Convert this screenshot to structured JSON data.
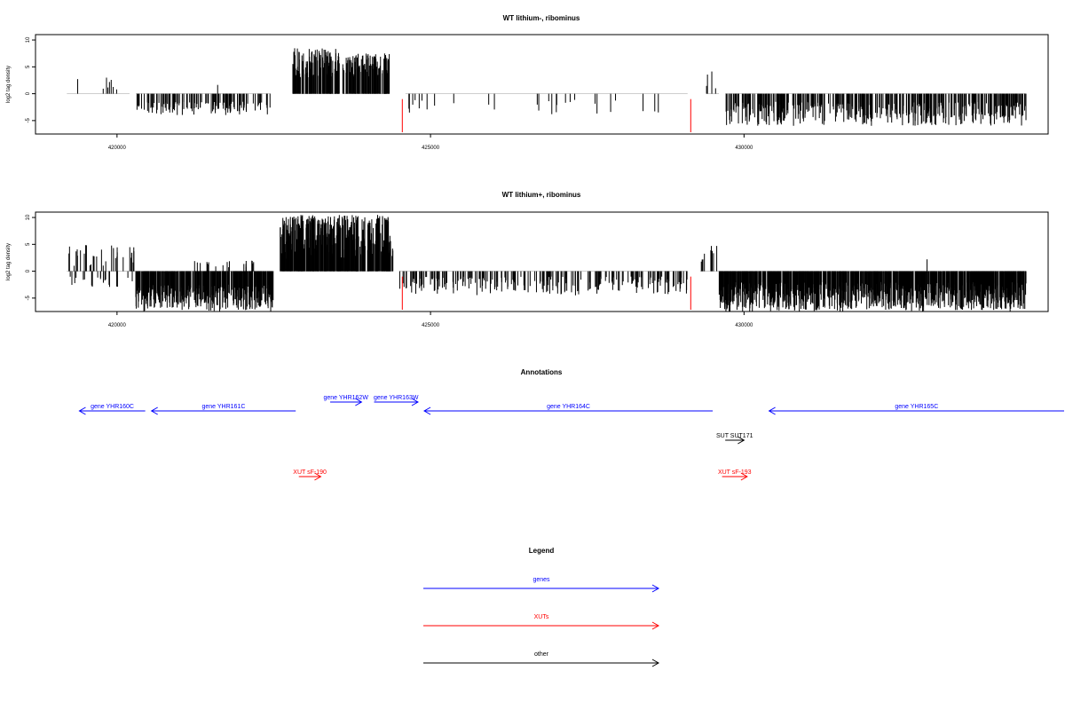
{
  "colors": {
    "gene": "#0000ff",
    "xut": "#ff0000",
    "other": "#000000",
    "bar": "#000000",
    "marker": "#ff0000",
    "baseline": "#bebebe"
  },
  "chart_data": [
    {
      "type": "bar",
      "title": "WT lithium-, ribominus",
      "ylabel": "log2 tag density",
      "xlim": [
        418700,
        434850
      ],
      "ylim": [
        -7.5,
        11
      ],
      "xticks": [
        420000,
        425000,
        430000
      ],
      "yticks": [
        -5,
        0,
        5,
        10
      ],
      "marker_positions": [
        424550,
        429150
      ],
      "segments": [
        {
          "from": 419200,
          "to": 420200,
          "lo": 0,
          "hi": 3,
          "density": 0.008
        },
        {
          "from": 420300,
          "to": 422450,
          "lo": -4,
          "hi": -1.5,
          "density": 0.06
        },
        {
          "from": 421600,
          "to": 421620,
          "lo": 0,
          "hi": 2,
          "density": 0.05
        },
        {
          "from": 422800,
          "to": 423550,
          "lo": 3,
          "hi": 8.5,
          "density": 0.15
        },
        {
          "from": 423600,
          "to": 424350,
          "lo": 3,
          "hi": 7.5,
          "density": 0.15
        },
        {
          "from": 424600,
          "to": 429100,
          "lo": -4,
          "hi": -1,
          "density": 0.006
        },
        {
          "from": 429400,
          "to": 429600,
          "lo": 1,
          "hi": 5,
          "density": 0.02
        },
        {
          "from": 429700,
          "to": 434500,
          "lo": -6,
          "hi": -1.5,
          "density": 0.09
        }
      ]
    },
    {
      "type": "bar",
      "title": "WT lithium+, ribominus",
      "ylabel": "log2 tag density",
      "xlim": [
        418700,
        434850
      ],
      "ylim": [
        -7.5,
        11
      ],
      "xticks": [
        420000,
        425000,
        430000
      ],
      "yticks": [
        -5,
        0,
        5,
        10
      ],
      "marker_positions": [
        424550,
        429150
      ],
      "segments": [
        {
          "from": 419200,
          "to": 420300,
          "lo": 1,
          "hi": 5,
          "density": 0.03
        },
        {
          "from": 419200,
          "to": 420300,
          "lo": -3,
          "hi": -1,
          "density": 0.02
        },
        {
          "from": 420300,
          "to": 422500,
          "lo": -7.5,
          "hi": -2.5,
          "density": 0.18
        },
        {
          "from": 421200,
          "to": 422200,
          "lo": 0.5,
          "hi": 2,
          "density": 0.02
        },
        {
          "from": 422600,
          "to": 424400,
          "lo": 2,
          "hi": 10.5,
          "density": 0.22
        },
        {
          "from": 424500,
          "to": 429100,
          "lo": -4.5,
          "hi": -1,
          "density": 0.05
        },
        {
          "from": 429300,
          "to": 429600,
          "lo": 1,
          "hi": 5,
          "density": 0.03
        },
        {
          "from": 429600,
          "to": 434500,
          "lo": -7.5,
          "hi": -2,
          "density": 0.22
        },
        {
          "from": 432900,
          "to": 432920,
          "lo": 0,
          "hi": 2.7,
          "density": 0.05
        }
      ]
    }
  ],
  "annotations": {
    "title": "Annotations",
    "items": [
      {
        "label": "gene YHR160C",
        "kind": "gene",
        "start": 419400,
        "end": 420450,
        "dir": "left",
        "row": 1
      },
      {
        "label": "gene YHR161C",
        "kind": "gene",
        "start": 420550,
        "end": 422850,
        "dir": "left",
        "row": 1
      },
      {
        "label": "gene YHR162W",
        "kind": "gene",
        "start": 423400,
        "end": 423900,
        "dir": "right",
        "row": 0
      },
      {
        "label": "gene YHR163W",
        "kind": "gene",
        "start": 424100,
        "end": 424800,
        "dir": "right",
        "row": 0
      },
      {
        "label": "gene YHR164C",
        "kind": "gene",
        "start": 424900,
        "end": 429500,
        "dir": "left",
        "row": 1
      },
      {
        "label": "gene YHR165C",
        "kind": "gene",
        "start": 430400,
        "end": 435600,
        "dir": "left",
        "row": 1
      },
      {
        "label": "SUT SUT171",
        "kind": "other",
        "start": 429700,
        "end": 430000,
        "dir": "right",
        "row": 2
      },
      {
        "label": "XUT sF-190",
        "kind": "xut",
        "start": 422900,
        "end": 423250,
        "dir": "right",
        "row": 3
      },
      {
        "label": "XUT sF-193",
        "kind": "xut",
        "start": 429650,
        "end": 430050,
        "dir": "right",
        "row": 3
      }
    ]
  },
  "legend": {
    "title": "Legend",
    "items": [
      {
        "label": "genes",
        "kind": "gene"
      },
      {
        "label": "XUTs",
        "kind": "xut"
      },
      {
        "label": "other",
        "kind": "other"
      }
    ]
  }
}
